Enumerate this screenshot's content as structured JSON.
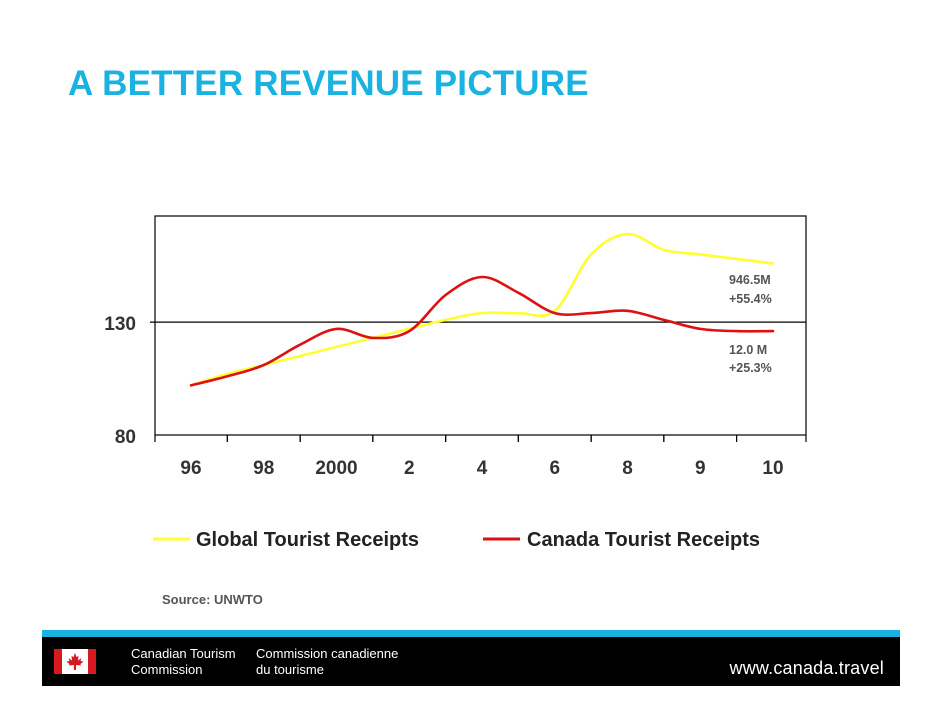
{
  "slide": {
    "title": "A BETTER REVENUE PICTURE",
    "title_color": "#1ab2e0",
    "source": "Source: UNWTO"
  },
  "chart_data": {
    "type": "line",
    "title": "",
    "categories": [
      "96",
      "98",
      "2000",
      "2",
      "4",
      "6",
      "8",
      "9",
      "10"
    ],
    "y_ticks": [
      80,
      130
    ],
    "ylim": [
      80,
      177
    ],
    "reference_line": 130,
    "grid": false,
    "legend_position": "bottom",
    "series": [
      {
        "name": "Global Tourist Receipts",
        "color": "#ffff33",
        "x": [
          0,
          0.5,
          1,
          1.5,
          2,
          2.5,
          3,
          3.5,
          4,
          4.5,
          5,
          5.5,
          6,
          6.5,
          7,
          7.5,
          8
        ],
        "values": [
          102,
          107,
          111,
          115,
          119,
          123,
          127,
          131,
          134,
          134,
          135,
          160,
          169,
          162,
          160,
          158,
          156
        ]
      },
      {
        "name": "Canada Tourist Receipts",
        "color": "#dd1111",
        "x": [
          0,
          0.5,
          1,
          1.5,
          2,
          2.5,
          3,
          3.5,
          4,
          4.5,
          5,
          5.5,
          6,
          6.5,
          7,
          7.5,
          8
        ],
        "values": [
          102,
          106,
          111,
          120,
          127,
          123,
          126,
          142,
          150,
          143,
          134,
          134,
          135,
          131,
          127,
          126,
          126
        ]
      }
    ],
    "annotations": [
      {
        "series": "Global Tourist Receipts",
        "lines": [
          "946.5M",
          "+55.4%"
        ]
      },
      {
        "series": "Canada Tourist Receipts",
        "lines": [
          "12.0 M",
          "+25.3%"
        ]
      }
    ]
  },
  "footer": {
    "org_en_line1": "Canadian Tourism",
    "org_en_line2": "Commission",
    "org_fr_line1": "Commission canadienne",
    "org_fr_line2": "du tourisme",
    "url": "www.canada.travel",
    "rule_color": "#1ab2e0",
    "logo_red": "#d71920",
    "icon": "canada-flag-icon"
  }
}
